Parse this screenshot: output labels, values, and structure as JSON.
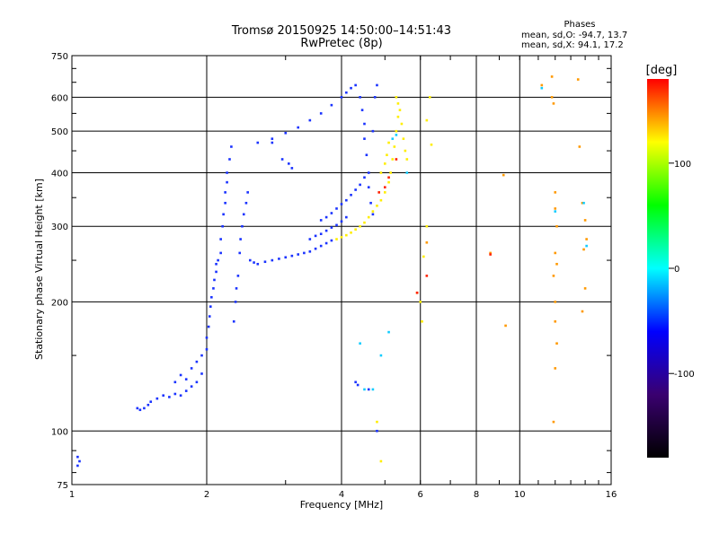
{
  "chart_data": {
    "type": "scatter",
    "title": "Tromsø 20150925 14:50:00–14:51:43",
    "subtitle": "RwPretec (8p)",
    "xlabel": "Frequency [MHz]",
    "ylabel": "Stationary phase Virtual Height [km]",
    "x_scale": "log",
    "y_scale": "log",
    "xlim": [
      1,
      16
    ],
    "ylim": [
      75,
      750
    ],
    "xticks": [
      {
        "value": 1,
        "label": "1"
      },
      {
        "value": 2,
        "label": "2"
      },
      {
        "value": 4,
        "label": "4"
      },
      {
        "value": 6,
        "label": "6"
      },
      {
        "value": 8,
        "label": "8"
      },
      {
        "value": 10,
        "label": "10"
      },
      {
        "value": 16,
        "label": "16"
      }
    ],
    "yticks": [
      {
        "value": 75,
        "label": "75"
      },
      {
        "value": 100,
        "label": "100"
      },
      {
        "value": 200,
        "label": "200"
      },
      {
        "value": 300,
        "label": "300"
      },
      {
        "value": 400,
        "label": "400"
      },
      {
        "value": 500,
        "label": "500"
      },
      {
        "value": 600,
        "label": "600"
      },
      {
        "value": 750,
        "label": "750"
      }
    ],
    "grid": true,
    "legend": {
      "heading": "Phases",
      "line1": "mean, sd,O: -94.7, 13.7",
      "line2": "mean, sd,X:  94.1, 17.2"
    },
    "colorbar": {
      "label": "[deg]",
      "range": [
        -180,
        180
      ],
      "ticks": [
        {
          "value": 100,
          "label": "100"
        },
        {
          "value": 0,
          "label": "0"
        },
        {
          "value": -100,
          "label": "-100"
        }
      ],
      "colors": [
        "#000000",
        "#3a0070",
        "#0000ff",
        "#00ffff",
        "#00ff00",
        "#ffff00",
        "#ff0000"
      ]
    },
    "series": [
      {
        "mode": "O",
        "color": "#1a33ff",
        "points": [
          [
            1.03,
            87
          ],
          [
            1.04,
            85
          ],
          [
            1.03,
            83
          ],
          [
            1.4,
            113
          ],
          [
            1.42,
            112
          ],
          [
            1.45,
            113
          ],
          [
            1.48,
            115
          ],
          [
            1.5,
            117
          ],
          [
            1.55,
            119
          ],
          [
            1.6,
            121
          ],
          [
            1.65,
            120
          ],
          [
            1.7,
            122
          ],
          [
            1.75,
            121
          ],
          [
            1.8,
            124
          ],
          [
            1.85,
            127
          ],
          [
            1.9,
            130
          ],
          [
            1.95,
            136
          ],
          [
            1.7,
            130
          ],
          [
            1.75,
            135
          ],
          [
            1.8,
            132
          ],
          [
            1.85,
            140
          ],
          [
            1.9,
            145
          ],
          [
            1.95,
            150
          ],
          [
            2.0,
            155
          ],
          [
            2.0,
            165
          ],
          [
            2.02,
            175
          ],
          [
            2.03,
            185
          ],
          [
            2.04,
            195
          ],
          [
            2.05,
            205
          ],
          [
            2.07,
            215
          ],
          [
            2.08,
            225
          ],
          [
            2.1,
            235
          ],
          [
            2.1,
            245
          ],
          [
            2.12,
            250
          ],
          [
            2.15,
            260
          ],
          [
            2.15,
            280
          ],
          [
            2.17,
            300
          ],
          [
            2.18,
            320
          ],
          [
            2.2,
            340
          ],
          [
            2.2,
            360
          ],
          [
            2.22,
            380
          ],
          [
            2.22,
            400
          ],
          [
            2.25,
            430
          ],
          [
            2.27,
            460
          ],
          [
            2.3,
            180
          ],
          [
            2.32,
            200
          ],
          [
            2.33,
            215
          ],
          [
            2.35,
            230
          ],
          [
            2.37,
            260
          ],
          [
            2.38,
            280
          ],
          [
            2.4,
            300
          ],
          [
            2.42,
            320
          ],
          [
            2.45,
            340
          ],
          [
            2.47,
            360
          ],
          [
            2.5,
            250
          ],
          [
            2.55,
            247
          ],
          [
            2.6,
            245
          ],
          [
            2.7,
            248
          ],
          [
            2.8,
            250
          ],
          [
            2.9,
            252
          ],
          [
            3.0,
            254
          ],
          [
            3.1,
            256
          ],
          [
            3.2,
            258
          ],
          [
            3.3,
            260
          ],
          [
            3.4,
            262
          ],
          [
            3.5,
            266
          ],
          [
            3.6,
            270
          ],
          [
            3.7,
            274
          ],
          [
            3.8,
            278
          ],
          [
            3.6,
            310
          ],
          [
            3.7,
            315
          ],
          [
            3.8,
            322
          ],
          [
            3.9,
            330
          ],
          [
            4.0,
            338
          ],
          [
            4.1,
            345
          ],
          [
            4.2,
            355
          ],
          [
            4.3,
            365
          ],
          [
            4.4,
            375
          ],
          [
            4.5,
            390
          ],
          [
            3.4,
            280
          ],
          [
            3.5,
            285
          ],
          [
            3.6,
            288
          ],
          [
            3.7,
            293
          ],
          [
            3.8,
            298
          ],
          [
            3.9,
            302
          ],
          [
            4.0,
            308
          ],
          [
            4.1,
            315
          ],
          [
            2.6,
            470
          ],
          [
            2.8,
            480
          ],
          [
            3.0,
            495
          ],
          [
            3.2,
            510
          ],
          [
            3.4,
            530
          ],
          [
            3.6,
            550
          ],
          [
            3.8,
            575
          ],
          [
            4.0,
            600
          ],
          [
            4.1,
            615
          ],
          [
            4.2,
            630
          ],
          [
            4.3,
            640
          ],
          [
            4.4,
            600
          ],
          [
            4.45,
            560
          ],
          [
            4.5,
            520
          ],
          [
            4.5,
            480
          ],
          [
            4.55,
            440
          ],
          [
            4.6,
            400
          ],
          [
            4.6,
            370
          ],
          [
            4.65,
            340
          ],
          [
            4.7,
            320
          ],
          [
            4.7,
            500
          ],
          [
            4.75,
            600
          ],
          [
            4.8,
            640
          ],
          [
            4.3,
            130
          ],
          [
            4.35,
            128
          ],
          [
            4.8,
            100
          ],
          [
            4.6,
            125
          ],
          [
            3.05,
            420
          ],
          [
            3.1,
            410
          ],
          [
            2.95,
            430
          ],
          [
            2.8,
            470
          ]
        ]
      },
      {
        "mode": "X",
        "color": "#ffee00",
        "points": [
          [
            3.9,
            280
          ],
          [
            4.0,
            283
          ],
          [
            4.1,
            286
          ],
          [
            4.2,
            290
          ],
          [
            4.3,
            295
          ],
          [
            4.4,
            300
          ],
          [
            4.5,
            306
          ],
          [
            4.6,
            315
          ],
          [
            4.7,
            325
          ],
          [
            4.8,
            335
          ],
          [
            4.9,
            345
          ],
          [
            5.0,
            360
          ],
          [
            5.1,
            380
          ],
          [
            5.15,
            400
          ],
          [
            5.2,
            430
          ],
          [
            5.25,
            460
          ],
          [
            5.3,
            500
          ],
          [
            5.35,
            540
          ],
          [
            5.35,
            580
          ],
          [
            5.3,
            600
          ],
          [
            5.4,
            560
          ],
          [
            5.45,
            520
          ],
          [
            5.5,
            480
          ],
          [
            5.55,
            450
          ],
          [
            5.6,
            430
          ],
          [
            5.0,
            420
          ],
          [
            5.05,
            440
          ],
          [
            5.1,
            470
          ],
          [
            4.9,
            400
          ],
          [
            6.0,
            200
          ],
          [
            6.1,
            255
          ],
          [
            6.2,
            300
          ],
          [
            6.3,
            600
          ],
          [
            6.35,
            465
          ],
          [
            6.2,
            530
          ],
          [
            4.9,
            85
          ],
          [
            4.8,
            105
          ],
          [
            6.05,
            180
          ]
        ]
      },
      {
        "mode": "scattered",
        "color": "#ff9900",
        "points": [
          [
            11.8,
            600
          ],
          [
            11.8,
            670
          ],
          [
            11.9,
            580
          ],
          [
            12.0,
            360
          ],
          [
            12.0,
            330
          ],
          [
            12.1,
            300
          ],
          [
            12.0,
            260
          ],
          [
            12.1,
            245
          ],
          [
            11.9,
            230
          ],
          [
            12.0,
            200
          ],
          [
            12.0,
            180
          ],
          [
            12.1,
            160
          ],
          [
            12.0,
            140
          ],
          [
            11.9,
            105
          ],
          [
            13.5,
            660
          ],
          [
            13.6,
            460
          ],
          [
            13.8,
            340
          ],
          [
            14.0,
            310
          ],
          [
            14.1,
            280
          ],
          [
            13.9,
            265
          ],
          [
            14.0,
            215
          ],
          [
            13.8,
            190
          ],
          [
            8.6,
            260
          ],
          [
            9.2,
            395
          ],
          [
            9.3,
            176
          ],
          [
            11.2,
            640
          ],
          [
            5.9,
            210
          ],
          [
            6.2,
            275
          ]
        ]
      },
      {
        "mode": "red",
        "color": "#ff2200",
        "points": [
          [
            4.85,
            360
          ],
          [
            5.0,
            370
          ],
          [
            5.1,
            390
          ],
          [
            5.3,
            430
          ],
          [
            5.9,
            210
          ],
          [
            8.6,
            258
          ],
          [
            6.2,
            230
          ]
        ]
      },
      {
        "mode": "cyan",
        "color": "#11ccff",
        "points": [
          [
            4.5,
            125
          ],
          [
            4.7,
            125
          ],
          [
            4.4,
            160
          ],
          [
            4.9,
            150
          ],
          [
            5.1,
            170
          ],
          [
            5.6,
            400
          ],
          [
            5.2,
            480
          ],
          [
            5.3,
            490
          ],
          [
            12.0,
            325
          ],
          [
            13.9,
            340
          ],
          [
            14.1,
            270
          ],
          [
            11.2,
            630
          ]
        ]
      }
    ]
  }
}
